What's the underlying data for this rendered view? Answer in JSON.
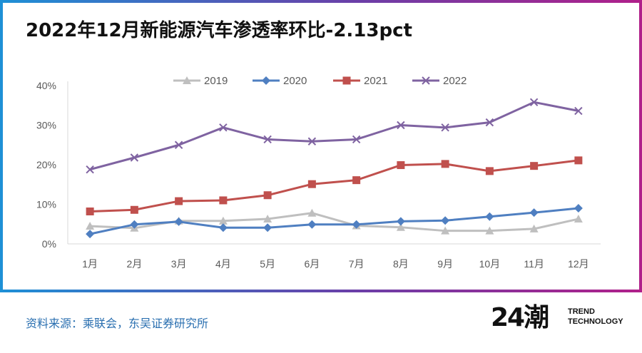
{
  "title": "2022年12月新能源汽车渗透率环比-2.13pct",
  "source": "资料来源：乘联会，东吴证券研究所",
  "logo": {
    "mark": "24潮",
    "line1": "TREND",
    "line2": "TECHNOLOGY"
  },
  "colors": {
    "2019": "#bfbfbf",
    "2020": "#4f7fc1",
    "2021": "#c0504d",
    "2022": "#7f63a1",
    "frame_left": "#1e90d6",
    "frame_right": "#b0208a"
  },
  "chart_data": {
    "type": "line",
    "title": "2022年12月新能源汽车渗透率环比-2.13pct",
    "categories": [
      "1月",
      "2月",
      "3月",
      "4月",
      "5月",
      "6月",
      "7月",
      "8月",
      "9月",
      "10月",
      "11月",
      "12月"
    ],
    "y_ticks": [
      "0%",
      "10%",
      "20%",
      "30%",
      "40%"
    ],
    "ylim": [
      0,
      40
    ],
    "legend_position": "top",
    "series": [
      {
        "name": "2019",
        "marker": "triangle",
        "values": [
          4.5,
          4.0,
          5.8,
          5.8,
          6.3,
          7.8,
          4.6,
          4.2,
          3.3,
          3.3,
          3.8,
          6.3
        ]
      },
      {
        "name": "2020",
        "marker": "diamond",
        "values": [
          2.5,
          4.9,
          5.6,
          4.1,
          4.1,
          4.9,
          4.9,
          5.7,
          5.9,
          6.9,
          7.9,
          9.0
        ]
      },
      {
        "name": "2021",
        "marker": "square",
        "values": [
          8.2,
          8.6,
          10.8,
          11.0,
          12.3,
          15.1,
          16.1,
          19.9,
          20.2,
          18.4,
          19.7,
          21.1
        ]
      },
      {
        "name": "2022",
        "marker": "x",
        "values": [
          18.8,
          21.8,
          25.0,
          29.4,
          26.4,
          25.9,
          26.4,
          30.0,
          29.4,
          30.7,
          35.8,
          33.6
        ]
      }
    ]
  }
}
